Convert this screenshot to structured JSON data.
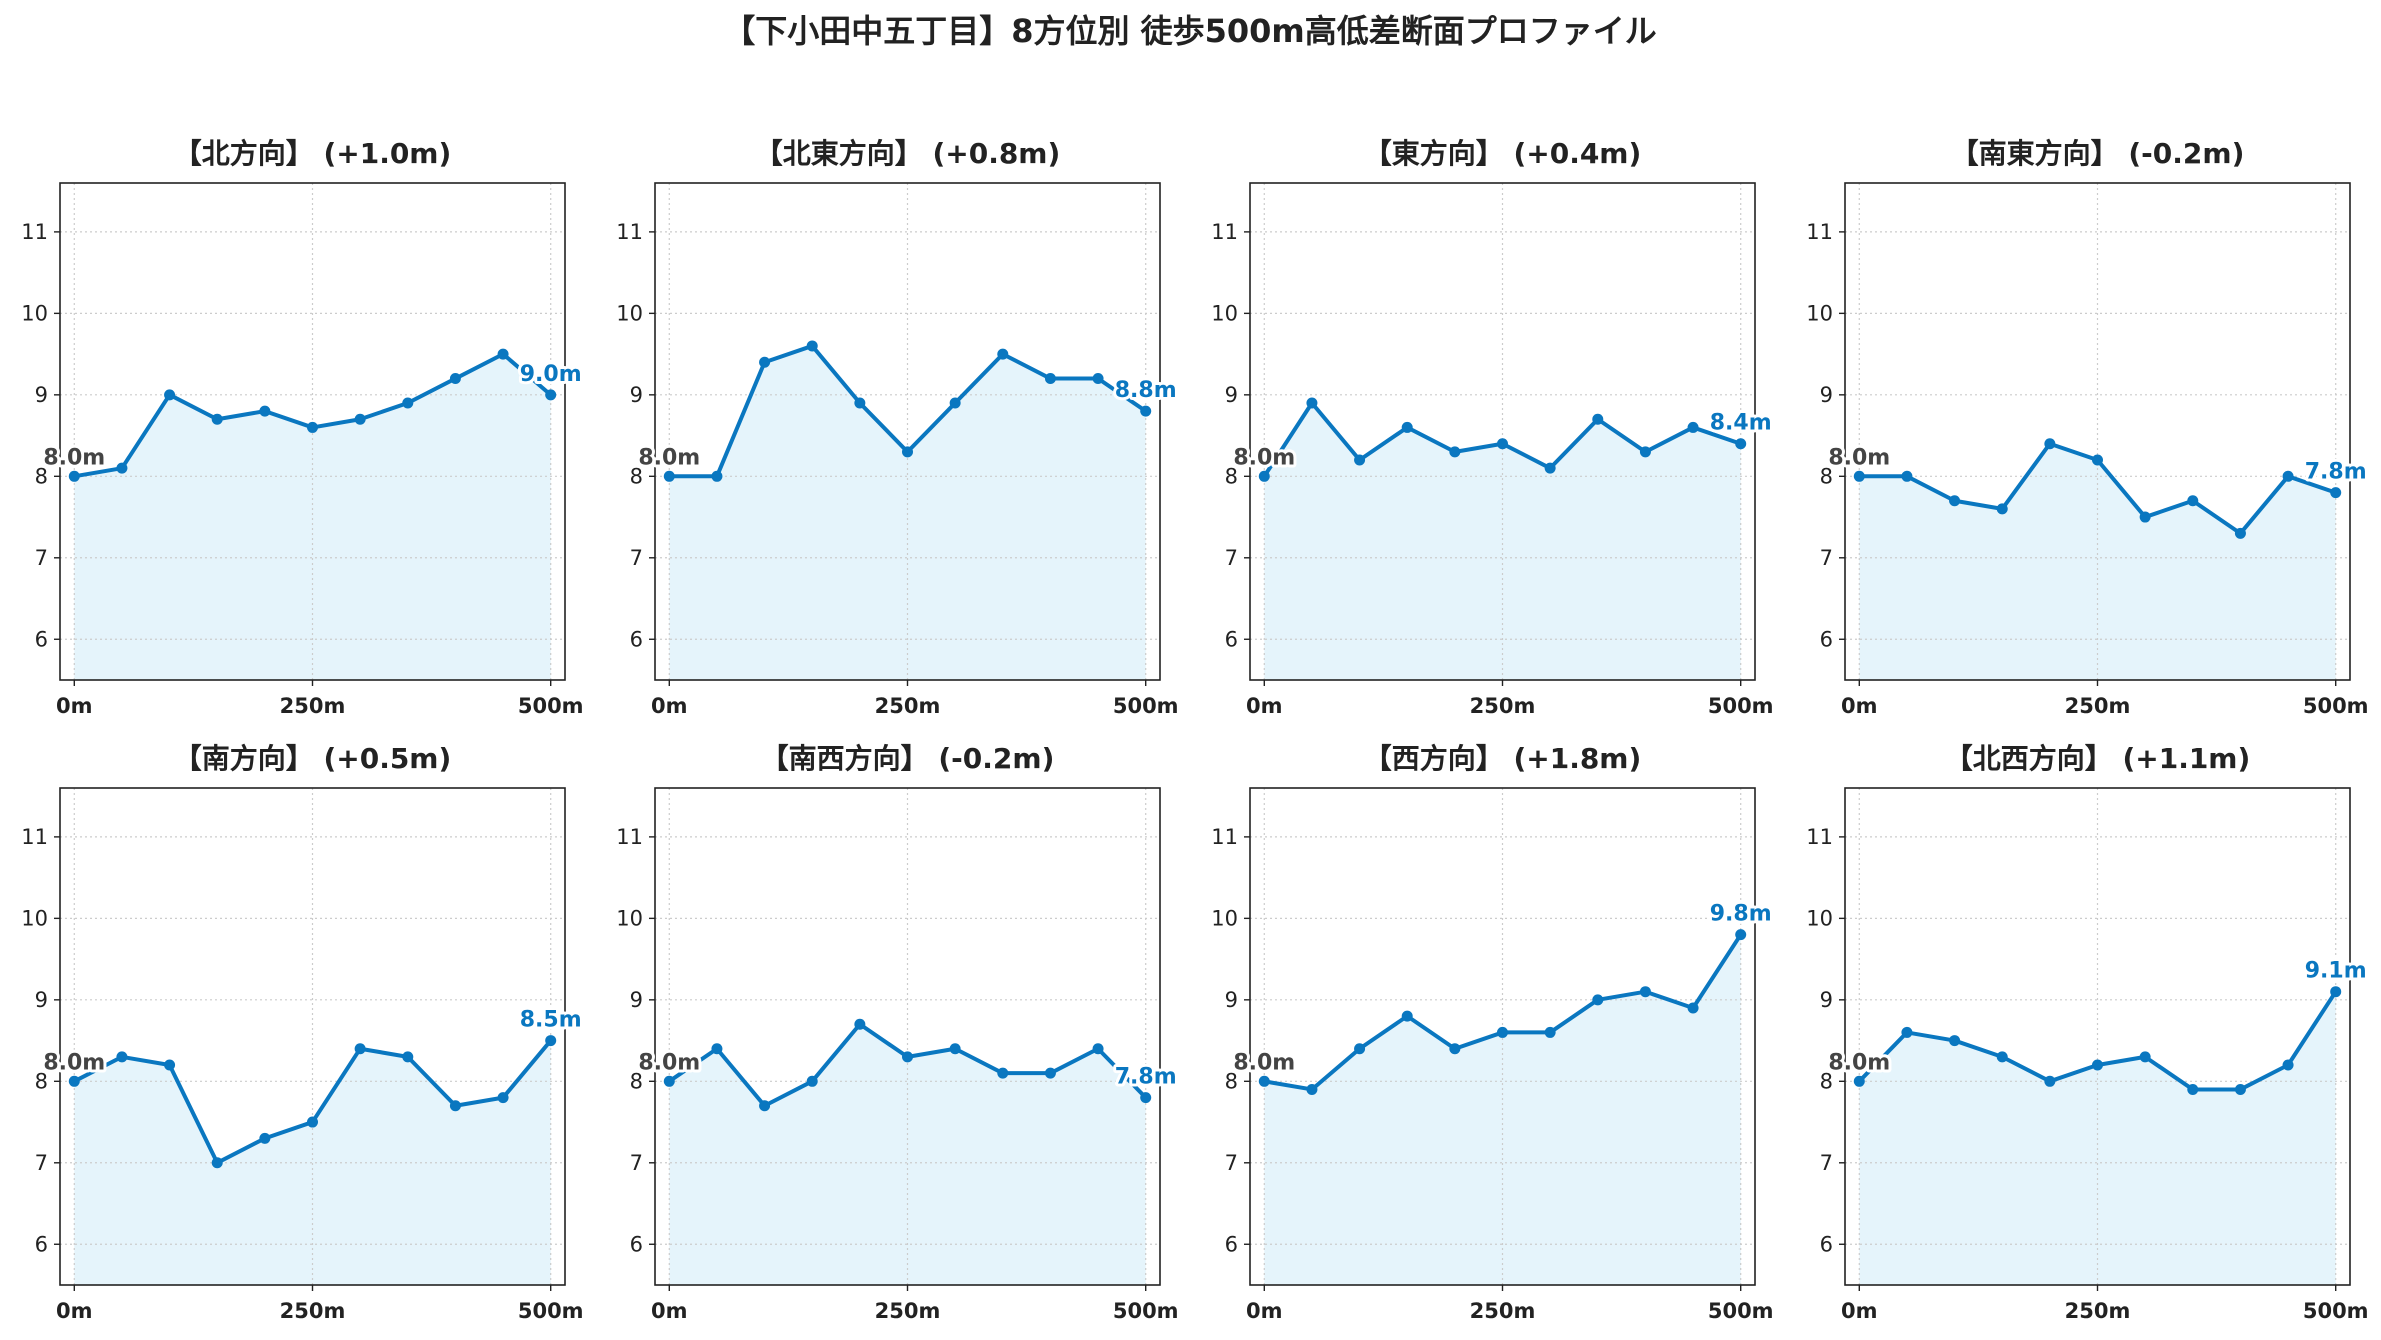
{
  "title": "【下小田中五丁目】8方位別 徒歩500m高低差断面プロファイル",
  "colors": {
    "line": "#0a77c0",
    "fill": "#e5f4fb",
    "start_label": "#444444",
    "end_label": "#0a77c0",
    "grid": "#cccccc"
  },
  "chart_data": [
    {
      "type": "area",
      "title": "【北方向】 (+1.0m)",
      "x": [
        0,
        50,
        100,
        150,
        200,
        250,
        300,
        350,
        400,
        450,
        500
      ],
      "y": [
        8.0,
        8.1,
        9.0,
        8.7,
        8.8,
        8.6,
        8.7,
        8.9,
        9.2,
        9.5,
        9.0
      ],
      "start_label": "8.0m",
      "end_label": "9.0m",
      "xticks": [
        "0m",
        "250m",
        "500m"
      ],
      "yticks": [
        "6",
        "7",
        "8",
        "9",
        "10",
        "11"
      ],
      "xlim": [
        -15,
        515
      ],
      "ylim": [
        5.5,
        11.6
      ],
      "grid": true
    },
    {
      "type": "area",
      "title": "【北東方向】 (+0.8m)",
      "x": [
        0,
        50,
        100,
        150,
        200,
        250,
        300,
        350,
        400,
        450,
        500
      ],
      "y": [
        8.0,
        8.0,
        9.4,
        9.6,
        8.9,
        8.3,
        8.9,
        9.5,
        9.2,
        9.2,
        8.8
      ],
      "start_label": "8.0m",
      "end_label": "8.8m",
      "xticks": [
        "0m",
        "250m",
        "500m"
      ],
      "yticks": [
        "6",
        "7",
        "8",
        "9",
        "10",
        "11"
      ],
      "xlim": [
        -15,
        515
      ],
      "ylim": [
        5.5,
        11.6
      ],
      "grid": true
    },
    {
      "type": "area",
      "title": "【東方向】 (+0.4m)",
      "x": [
        0,
        50,
        100,
        150,
        200,
        250,
        300,
        350,
        400,
        450,
        500
      ],
      "y": [
        8.0,
        8.9,
        8.2,
        8.6,
        8.3,
        8.4,
        8.1,
        8.7,
        8.3,
        8.6,
        8.4
      ],
      "start_label": "8.0m",
      "end_label": "8.4m",
      "xticks": [
        "0m",
        "250m",
        "500m"
      ],
      "yticks": [
        "6",
        "7",
        "8",
        "9",
        "10",
        "11"
      ],
      "xlim": [
        -15,
        515
      ],
      "ylim": [
        5.5,
        11.6
      ],
      "grid": true
    },
    {
      "type": "area",
      "title": "【南東方向】 (-0.2m)",
      "x": [
        0,
        50,
        100,
        150,
        200,
        250,
        300,
        350,
        400,
        450,
        500
      ],
      "y": [
        8.0,
        8.0,
        7.7,
        7.6,
        8.4,
        8.2,
        7.5,
        7.7,
        7.3,
        8.0,
        7.8
      ],
      "start_label": "8.0m",
      "end_label": "7.8m",
      "xticks": [
        "0m",
        "250m",
        "500m"
      ],
      "yticks": [
        "6",
        "7",
        "8",
        "9",
        "10",
        "11"
      ],
      "xlim": [
        -15,
        515
      ],
      "ylim": [
        5.5,
        11.6
      ],
      "grid": true
    },
    {
      "type": "area",
      "title": "【南方向】 (+0.5m)",
      "x": [
        0,
        50,
        100,
        150,
        200,
        250,
        300,
        350,
        400,
        450,
        500
      ],
      "y": [
        8.0,
        8.3,
        8.2,
        7.0,
        7.3,
        7.5,
        8.4,
        8.3,
        7.7,
        7.8,
        8.5
      ],
      "start_label": "8.0m",
      "end_label": "8.5m",
      "xticks": [
        "0m",
        "250m",
        "500m"
      ],
      "yticks": [
        "6",
        "7",
        "8",
        "9",
        "10",
        "11"
      ],
      "xlim": [
        -15,
        515
      ],
      "ylim": [
        5.5,
        11.6
      ],
      "grid": true
    },
    {
      "type": "area",
      "title": "【南西方向】 (-0.2m)",
      "x": [
        0,
        50,
        100,
        150,
        200,
        250,
        300,
        350,
        400,
        450,
        500
      ],
      "y": [
        8.0,
        8.4,
        7.7,
        8.0,
        8.7,
        8.3,
        8.4,
        8.1,
        8.1,
        8.4,
        7.8
      ],
      "start_label": "8.0m",
      "end_label": "7.8m",
      "xticks": [
        "0m",
        "250m",
        "500m"
      ],
      "yticks": [
        "6",
        "7",
        "8",
        "9",
        "10",
        "11"
      ],
      "xlim": [
        -15,
        515
      ],
      "ylim": [
        5.5,
        11.6
      ],
      "grid": true
    },
    {
      "type": "area",
      "title": "【西方向】 (+1.8m)",
      "x": [
        0,
        50,
        100,
        150,
        200,
        250,
        300,
        350,
        400,
        450,
        500
      ],
      "y": [
        8.0,
        7.9,
        8.4,
        8.8,
        8.4,
        8.6,
        8.6,
        9.0,
        9.1,
        8.9,
        9.8
      ],
      "start_label": "8.0m",
      "end_label": "9.8m",
      "xticks": [
        "0m",
        "250m",
        "500m"
      ],
      "yticks": [
        "6",
        "7",
        "8",
        "9",
        "10",
        "11"
      ],
      "xlim": [
        -15,
        515
      ],
      "ylim": [
        5.5,
        11.6
      ],
      "grid": true
    },
    {
      "type": "area",
      "title": "【北西方向】 (+1.1m)",
      "x": [
        0,
        50,
        100,
        150,
        200,
        250,
        300,
        350,
        400,
        450,
        500
      ],
      "y": [
        8.0,
        8.6,
        8.5,
        8.3,
        8.0,
        8.2,
        8.3,
        7.9,
        7.9,
        8.2,
        9.1
      ],
      "start_label": "8.0m",
      "end_label": "9.1m",
      "xticks": [
        "0m",
        "250m",
        "500m"
      ],
      "yticks": [
        "6",
        "7",
        "8",
        "9",
        "10",
        "11"
      ],
      "xlim": [
        -15,
        515
      ],
      "ylim": [
        5.5,
        11.6
      ],
      "grid": true
    }
  ]
}
